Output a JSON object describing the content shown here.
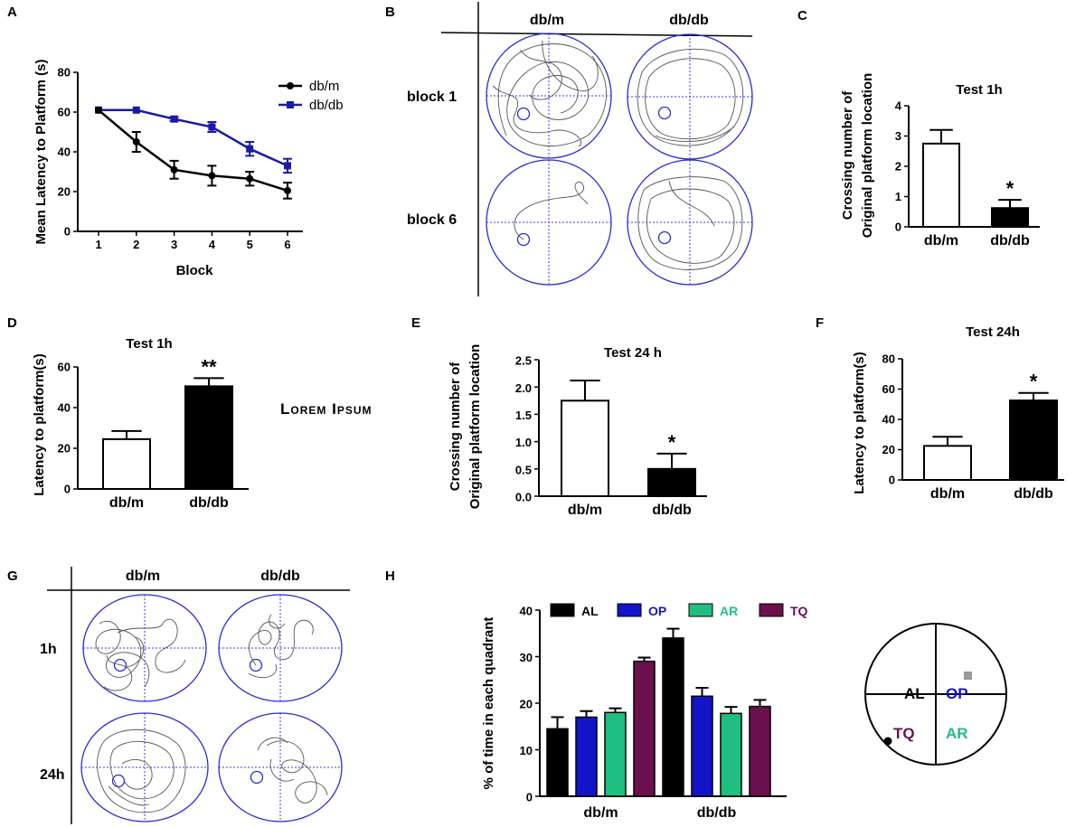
{
  "overlay_text": "Lorem Ipsum",
  "colors": {
    "dbm": "#000000",
    "dbdb": "#1a1aaa",
    "pool": "#2b2bd6",
    "AL": "#000000",
    "OP": "#1414c8",
    "AR": "#1fbf82",
    "TQ": "#6b0f4f"
  },
  "panels": {
    "A": {
      "letter": "A"
    },
    "B": {
      "letter": "B",
      "col1": "db/m",
      "col2": "db/db",
      "row1": "block 1",
      "row2": "block 6"
    },
    "C": {
      "letter": "C"
    },
    "D": {
      "letter": "D"
    },
    "E": {
      "letter": "E"
    },
    "F": {
      "letter": "F"
    },
    "G": {
      "letter": "G",
      "col1": "db/m",
      "col2": "db/db",
      "row1": "1h",
      "row2": "24h"
    },
    "H": {
      "letter": "H"
    }
  },
  "quadrant_diagram": {
    "labels": [
      "AL",
      "OP",
      "TQ",
      "AR"
    ]
  },
  "chart_data": [
    {
      "id": "A",
      "type": "line",
      "title": "",
      "xlabel": "Block",
      "ylabel": "Mean Latency to Platform (s)",
      "x": [
        1,
        2,
        3,
        4,
        5,
        6
      ],
      "xticks": [
        "1",
        "2",
        "3",
        "4",
        "5",
        "6"
      ],
      "ylim": [
        0,
        80
      ],
      "yticks": [
        "0",
        "20",
        "40",
        "60",
        "80"
      ],
      "legend": "top-right",
      "series": [
        {
          "name": "db/m",
          "values": [
            61,
            45,
            31,
            28,
            26.5,
            20.5
          ],
          "errors": [
            0,
            5,
            4.5,
            5,
            3.5,
            4
          ]
        },
        {
          "name": "db/db",
          "values": [
            61,
            61,
            56.5,
            52.5,
            41.5,
            33
          ],
          "errors": [
            0,
            0,
            1,
            2.5,
            3.5,
            3.5
          ]
        }
      ]
    },
    {
      "id": "C",
      "type": "bar",
      "title": "Test 1h",
      "ylabel": "Crossing number of Original platform location",
      "categories": [
        "db/m",
        "db/db"
      ],
      "values": [
        2.75,
        0.62
      ],
      "errors": [
        0.45,
        0.27
      ],
      "ylim": [
        0,
        4
      ],
      "yticks": [
        "0",
        "1",
        "2",
        "3",
        "4"
      ],
      "annotations": [
        "",
        "*"
      ]
    },
    {
      "id": "D",
      "type": "bar",
      "title": "Test 1h",
      "ylabel": "Latency to platform(s)",
      "categories": [
        "db/m",
        "db/db"
      ],
      "values": [
        24.5,
        50.5
      ],
      "errors": [
        4,
        4
      ],
      "ylim": [
        0,
        60
      ],
      "yticks": [
        "0",
        "20",
        "40",
        "60"
      ],
      "annotations": [
        "",
        "**"
      ]
    },
    {
      "id": "E",
      "type": "bar",
      "title": "Test 24 h",
      "ylabel": "Crossing number of Original platform location",
      "categories": [
        "db/m",
        "db/db"
      ],
      "values": [
        1.75,
        0.5
      ],
      "errors": [
        0.37,
        0.28
      ],
      "ylim": [
        0,
        2.5
      ],
      "yticks": [
        "0.0",
        "0.5",
        "1.0",
        "1.5",
        "2.0",
        "2.5"
      ],
      "annotations": [
        "",
        "*"
      ]
    },
    {
      "id": "F",
      "type": "bar",
      "title": "Test 24h",
      "ylabel": "Latency to platform(s)",
      "categories": [
        "db/m",
        "db/db"
      ],
      "values": [
        22.5,
        52.5
      ],
      "errors": [
        6,
        5
      ],
      "ylim": [
        0,
        80
      ],
      "yticks": [
        "0",
        "20",
        "40",
        "60",
        "80"
      ],
      "annotations": [
        "",
        "*"
      ]
    },
    {
      "id": "H",
      "type": "bar",
      "title": "",
      "ylabel": "% of time in each quadrant",
      "categories": [
        "db/m",
        "db/db"
      ],
      "ylim": [
        0,
        40
      ],
      "yticks": [
        "0",
        "10",
        "20",
        "30",
        "40"
      ],
      "legend": "top",
      "series": [
        {
          "name": "AL",
          "values": [
            14.5,
            34
          ],
          "errors": [
            2.5,
            2
          ]
        },
        {
          "name": "OP",
          "values": [
            17,
            21.5
          ],
          "errors": [
            1.3,
            1.8
          ]
        },
        {
          "name": "AR",
          "values": [
            18,
            17.8
          ],
          "errors": [
            0.9,
            1.4
          ]
        },
        {
          "name": "TQ",
          "values": [
            29,
            19.3
          ],
          "errors": [
            0.8,
            1.4
          ]
        }
      ]
    }
  ]
}
